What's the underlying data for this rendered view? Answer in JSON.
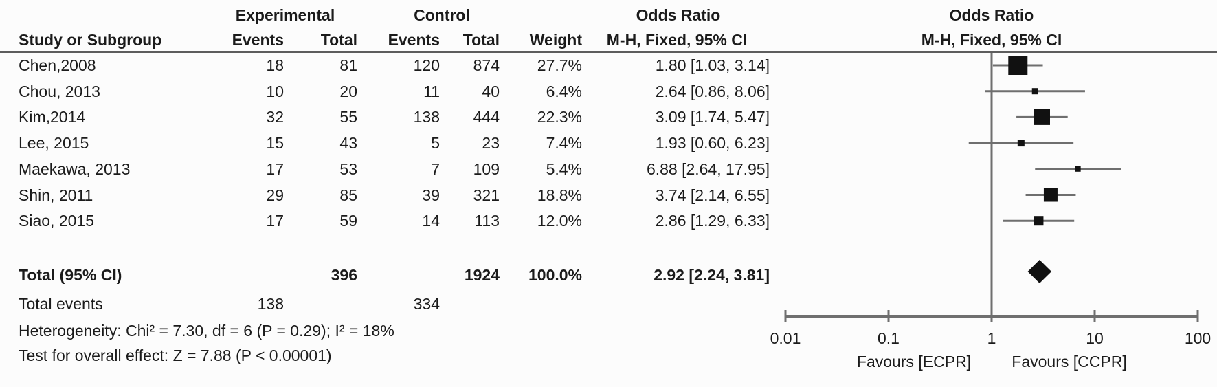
{
  "table": {
    "group_headers": {
      "experimental": "Experimental",
      "control": "Control",
      "odds_ratio_left": "Odds Ratio",
      "odds_ratio_right": "Odds Ratio"
    },
    "columns": {
      "study": "Study or Subgroup",
      "events_exp": "Events",
      "total_exp": "Total",
      "events_ctl": "Events",
      "total_ctl": "Total",
      "weight": "Weight",
      "mh_left": "M-H, Fixed, 95% CI",
      "mh_right": "M-H, Fixed, 95% CI"
    }
  },
  "chart_data": {
    "type": "forest",
    "effect_measure": "Odds Ratio (M-H, Fixed, 95% CI)",
    "x_scale": "log10",
    "xlim": [
      0.01,
      100
    ],
    "axis_ticks": [
      "0.01",
      "0.1",
      "1",
      "10",
      "100"
    ],
    "favours_left": "Favours [ECPR]",
    "favours_right": "Favours [CCPR]",
    "studies": [
      {
        "name": "Chen,2008",
        "exp_events": "18",
        "exp_total": "81",
        "ctl_events": "120",
        "ctl_total": "874",
        "weight": "27.7%",
        "weight_pct": 27.7,
        "or": 1.8,
        "ci_low": 1.03,
        "ci_high": 3.14,
        "label": "1.80 [1.03, 3.14]"
      },
      {
        "name": "Chou, 2013",
        "exp_events": "10",
        "exp_total": "20",
        "ctl_events": "11",
        "ctl_total": "40",
        "weight": "6.4%",
        "weight_pct": 6.4,
        "or": 2.64,
        "ci_low": 0.86,
        "ci_high": 8.06,
        "label": "2.64 [0.86, 8.06]"
      },
      {
        "name": "Kim,2014",
        "exp_events": "32",
        "exp_total": "55",
        "ctl_events": "138",
        "ctl_total": "444",
        "weight": "22.3%",
        "weight_pct": 22.3,
        "or": 3.09,
        "ci_low": 1.74,
        "ci_high": 5.47,
        "label": "3.09 [1.74, 5.47]"
      },
      {
        "name": "Lee, 2015",
        "exp_events": "15",
        "exp_total": "43",
        "ctl_events": "5",
        "ctl_total": "23",
        "weight": "7.4%",
        "weight_pct": 7.4,
        "or": 1.93,
        "ci_low": 0.6,
        "ci_high": 6.23,
        "label": "1.93 [0.60, 6.23]"
      },
      {
        "name": "Maekawa, 2013",
        "exp_events": "17",
        "exp_total": "53",
        "ctl_events": "7",
        "ctl_total": "109",
        "weight": "5.4%",
        "weight_pct": 5.4,
        "or": 6.88,
        "ci_low": 2.64,
        "ci_high": 17.95,
        "label": "6.88 [2.64, 17.95]"
      },
      {
        "name": "Shin, 2011",
        "exp_events": "29",
        "exp_total": "85",
        "ctl_events": "39",
        "ctl_total": "321",
        "weight": "18.8%",
        "weight_pct": 18.8,
        "or": 3.74,
        "ci_low": 2.14,
        "ci_high": 6.55,
        "label": "3.74 [2.14, 6.55]"
      },
      {
        "name": "Siao, 2015",
        "exp_events": "17",
        "exp_total": "59",
        "ctl_events": "14",
        "ctl_total": "113",
        "weight": "12.0%",
        "weight_pct": 12.0,
        "or": 2.86,
        "ci_low": 1.29,
        "ci_high": 6.33,
        "label": "2.86 [1.29, 6.33]"
      }
    ],
    "total": {
      "name": "Total (95% CI)",
      "exp_total": "396",
      "ctl_total": "1924",
      "weight": "100.0%",
      "or": 2.92,
      "ci_low": 2.24,
      "ci_high": 3.81,
      "label": "2.92 [2.24, 3.81]"
    },
    "total_events": {
      "name": "Total events",
      "exp": "138",
      "ctl": "334"
    },
    "heterogeneity": "Heterogeneity: Chi² = 7.30, df = 6 (P = 0.29); I² = 18%",
    "overall_effect": "Test for overall effect: Z = 7.88 (P < 0.00001)",
    "colors": {
      "text": "#1b1b1b",
      "lines": "#6f6f6f",
      "marker": "#111111"
    }
  }
}
